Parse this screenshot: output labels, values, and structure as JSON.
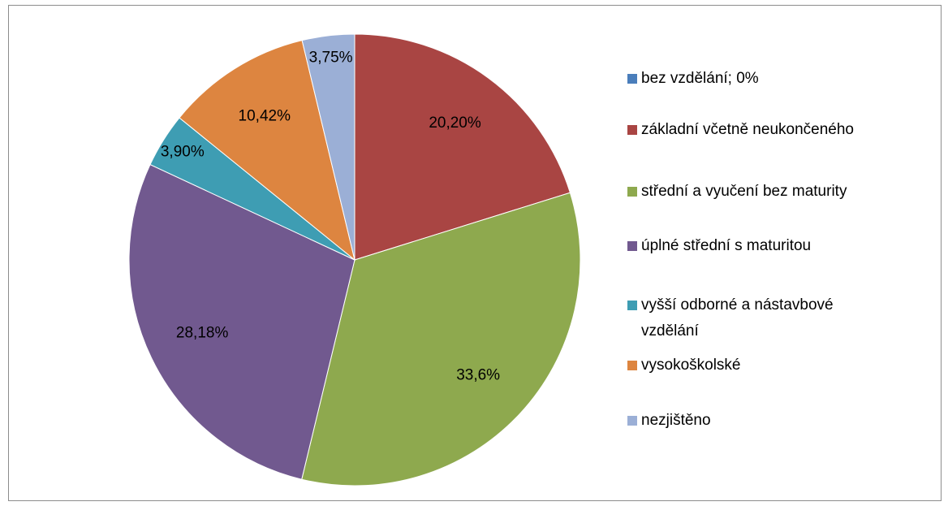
{
  "chart_data": {
    "type": "pie",
    "categories": [
      "bez vzdělání; 0%",
      "základní včetně neukončeného",
      "střední a vyučení bez maturity",
      "úplné střední s maturitou",
      "vyšší odborné a nástavbové vzdělání",
      "vysokoškolské",
      "nezjištěno"
    ],
    "values": [
      0,
      20.2,
      33.6,
      28.18,
      3.9,
      10.42,
      3.75
    ],
    "value_labels": [
      null,
      "20,20%",
      "33,6%",
      "28,18%",
      "3,90%",
      "10,42%",
      "3,75%"
    ],
    "colors": [
      "#4a7ebb",
      "#a94543",
      "#8ea94e",
      "#71598f",
      "#3e9db3",
      "#dd8540",
      "#9bafd6"
    ],
    "legend": "right"
  }
}
